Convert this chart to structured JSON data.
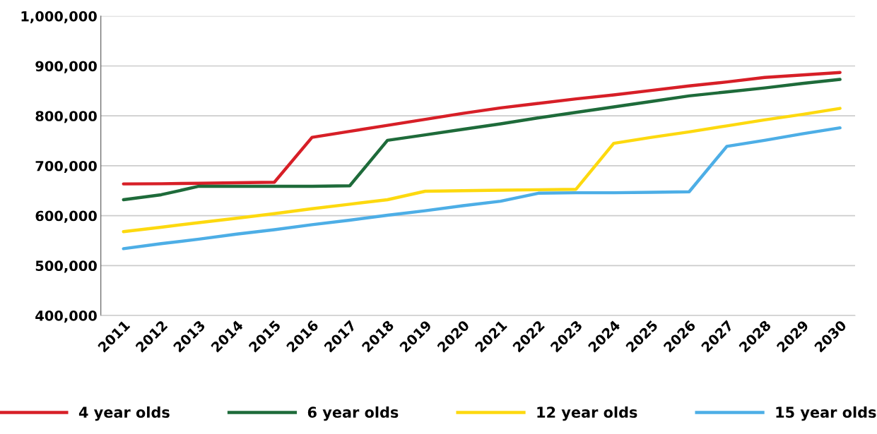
{
  "chart_data": {
    "type": "line",
    "categories": [
      "2011",
      "2012",
      "2013",
      "2014",
      "2015",
      "2016",
      "2017",
      "2018",
      "2019",
      "2020",
      "2021",
      "2022",
      "2023",
      "2024",
      "2025",
      "2026",
      "2027",
      "2028",
      "2029",
      "2030"
    ],
    "series": [
      {
        "name": "4 year olds",
        "color": "#d71f27",
        "values": [
          663700,
          664000,
          665000,
          666000,
          667000,
          757000,
          769000,
          781000,
          793000,
          805000,
          816000,
          825000,
          834000,
          842000,
          851000,
          860000,
          868000,
          877000,
          882000,
          887000
        ]
      },
      {
        "name": "6 year olds",
        "color": "#1e6b3a",
        "values": [
          632000,
          642000,
          659000,
          659000,
          659000,
          659000,
          660000,
          751000,
          762000,
          773000,
          784000,
          796000,
          807000,
          818000,
          829000,
          840000,
          848000,
          856000,
          865000,
          873000
        ]
      },
      {
        "name": "12 year olds",
        "color": "#fdd90f",
        "values": [
          568000,
          577000,
          586000,
          595000,
          604000,
          614000,
          623000,
          632000,
          649000,
          650000,
          651000,
          652000,
          653000,
          745000,
          757000,
          768000,
          780000,
          792000,
          803000,
          815000
        ]
      },
      {
        "name": "15 year olds",
        "color": "#4daee6",
        "values": [
          534000,
          544000,
          553000,
          563000,
          572000,
          582000,
          591000,
          601000,
          610000,
          620000,
          629000,
          645000,
          646000,
          646000,
          647000,
          648000,
          739000,
          751000,
          764000,
          776000
        ]
      }
    ],
    "ylim": [
      400000,
      1000000
    ],
    "yticks": [
      {
        "value": 400000,
        "label": "400,000"
      },
      {
        "value": 500000,
        "label": "500,000"
      },
      {
        "value": 600000,
        "label": "600,000"
      },
      {
        "value": 700000,
        "label": "700,000"
      },
      {
        "value": 800000,
        "label": "800,000"
      },
      {
        "value": 900000,
        "label": "900,000"
      },
      {
        "value": 1000000,
        "label": "1,000,000"
      }
    ],
    "grid": "y",
    "legend": "bottom",
    "marker": "none",
    "line_style": "solid"
  }
}
